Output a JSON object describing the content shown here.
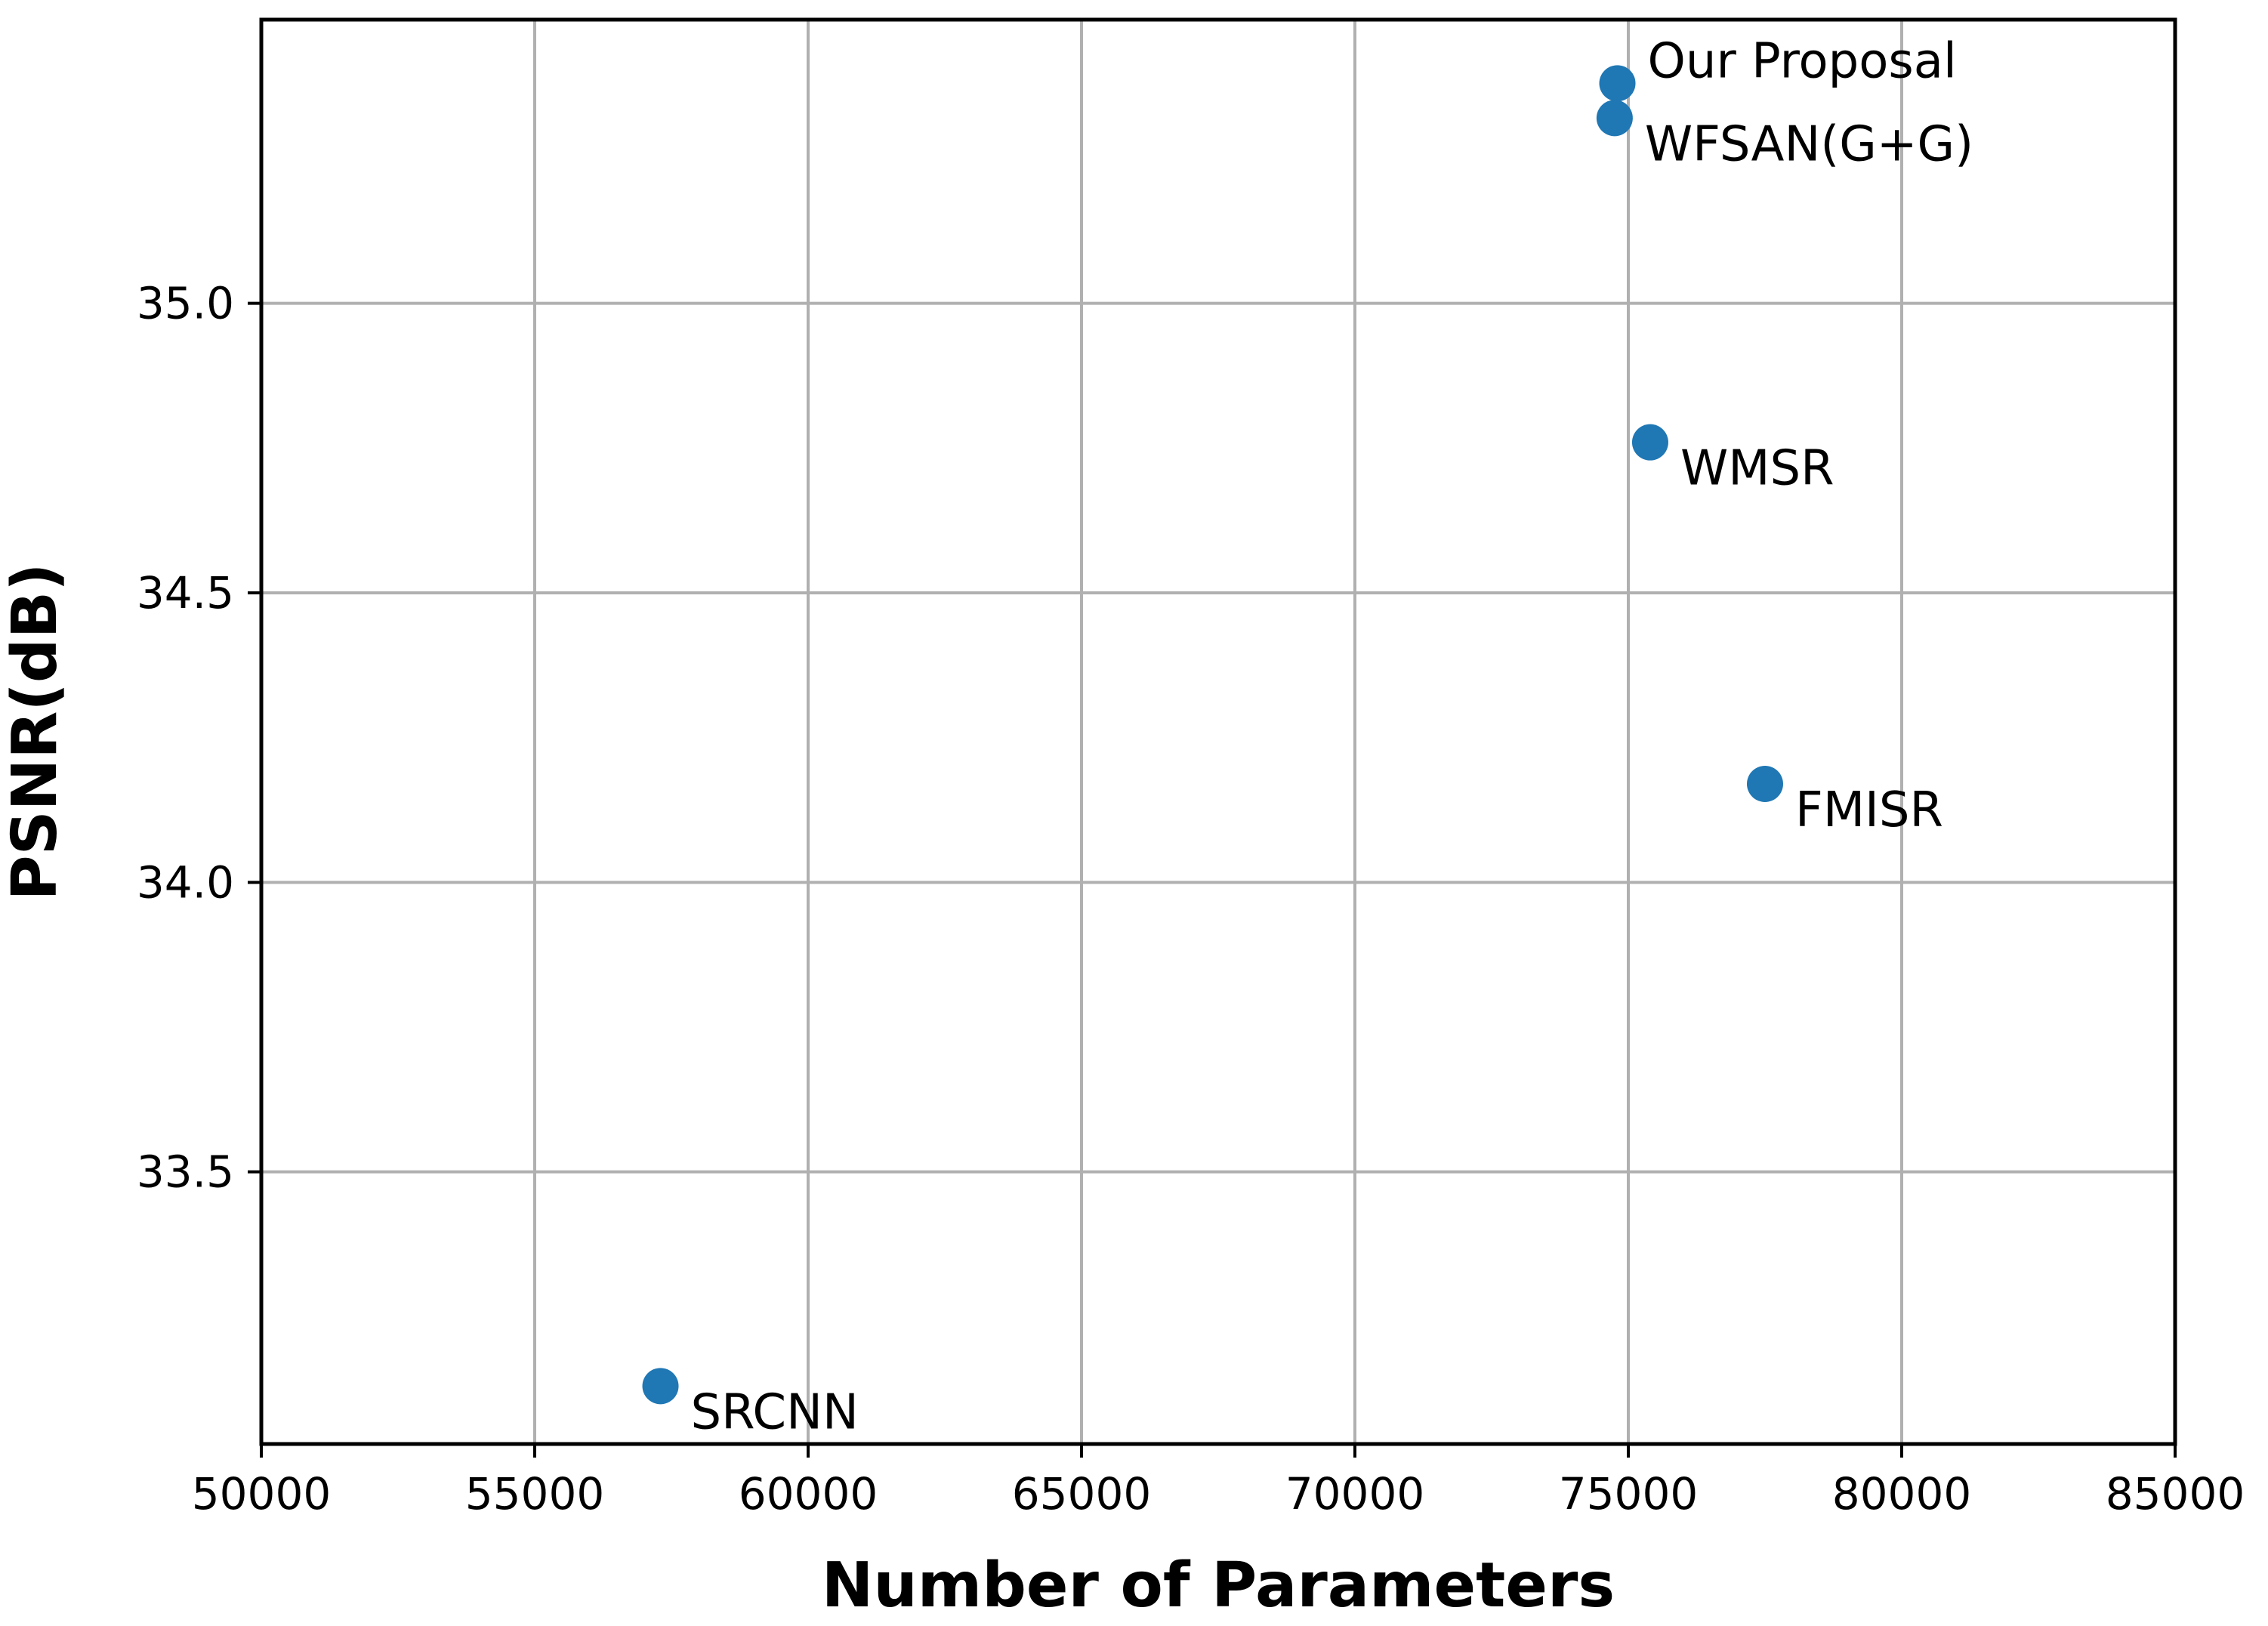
{
  "chart_data": {
    "type": "scatter",
    "title": "",
    "xlabel": "Number of Parameters",
    "ylabel": "PSNR(dB)",
    "xlim": [
      50000,
      85000
    ],
    "ylim": [
      33.03,
      35.49
    ],
    "xticks": [
      50000,
      55000,
      60000,
      65000,
      70000,
      75000,
      80000,
      85000
    ],
    "yticks": [
      33.5,
      34.0,
      34.5,
      35.0
    ],
    "xtick_labels": [
      "50000",
      "55000",
      "60000",
      "65000",
      "70000",
      "75000",
      "80000",
      "85000"
    ],
    "ytick_labels": [
      "33.5",
      "34.0",
      "34.5",
      "35.0"
    ],
    "grid": true,
    "marker_color": "#1f77b4",
    "points": [
      {
        "label": "Our Proposal",
        "x": 74800,
        "y": 35.38,
        "label_position": "upper-right"
      },
      {
        "label": "WFSAN(G+G)",
        "x": 74750,
        "y": 35.32,
        "label_position": "lower-right"
      },
      {
        "label": "WMSR",
        "x": 75400,
        "y": 34.76,
        "label_position": "lower-right"
      },
      {
        "label": "FMISR",
        "x": 77500,
        "y": 34.17,
        "label_position": "lower-right"
      },
      {
        "label": "SRCNN",
        "x": 57300,
        "y": 33.13,
        "label_position": "lower-right"
      }
    ]
  }
}
